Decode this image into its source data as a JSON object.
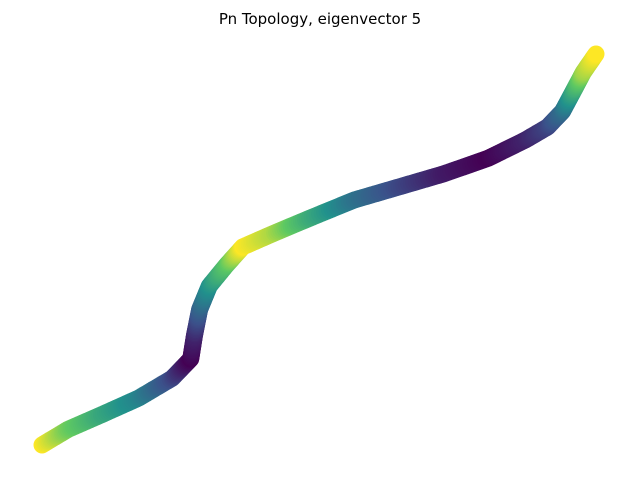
{
  "chart_data": {
    "type": "scatter",
    "title": "Pn Topology, eigenvector 5",
    "xlabel": "",
    "ylabel": "",
    "axes_visible": false,
    "grid": false,
    "colormap": "viridis",
    "color_range": [
      0,
      1
    ],
    "colormap_colors": [
      "#440154",
      "#3b528b",
      "#21918c",
      "#5ec962",
      "#fde725"
    ],
    "series": [
      {
        "points": [
          {
            "x": 0.0,
            "y": 0.0,
            "c": 1.0
          },
          {
            "x": 0.035,
            "y": 0.03,
            "c": 0.78
          },
          {
            "x": 0.08,
            "y": 0.058,
            "c": 0.6
          },
          {
            "x": 0.13,
            "y": 0.09,
            "c": 0.45
          },
          {
            "x": 0.175,
            "y": 0.128,
            "c": 0.22
          },
          {
            "x": 0.2,
            "y": 0.165,
            "c": 0.0
          },
          {
            "x": 0.205,
            "y": 0.21,
            "c": 0.1
          },
          {
            "x": 0.212,
            "y": 0.26,
            "c": 0.3
          },
          {
            "x": 0.225,
            "y": 0.305,
            "c": 0.5
          },
          {
            "x": 0.248,
            "y": 0.345,
            "c": 0.72
          },
          {
            "x": 0.27,
            "y": 0.38,
            "c": 1.0
          },
          {
            "x": 0.31,
            "y": 0.405,
            "c": 0.88
          },
          {
            "x": 0.36,
            "y": 0.435,
            "c": 0.62
          },
          {
            "x": 0.42,
            "y": 0.47,
            "c": 0.38
          },
          {
            "x": 0.48,
            "y": 0.495,
            "c": 0.22
          },
          {
            "x": 0.54,
            "y": 0.52,
            "c": 0.08
          },
          {
            "x": 0.6,
            "y": 0.55,
            "c": 0.0
          },
          {
            "x": 0.65,
            "y": 0.585,
            "c": 0.1
          },
          {
            "x": 0.68,
            "y": 0.61,
            "c": 0.2
          },
          {
            "x": 0.7,
            "y": 0.64,
            "c": 0.35
          },
          {
            "x": 0.715,
            "y": 0.68,
            "c": 0.6
          },
          {
            "x": 0.728,
            "y": 0.715,
            "c": 0.85
          },
          {
            "x": 0.745,
            "y": 0.75,
            "c": 1.0
          }
        ]
      }
    ]
  }
}
